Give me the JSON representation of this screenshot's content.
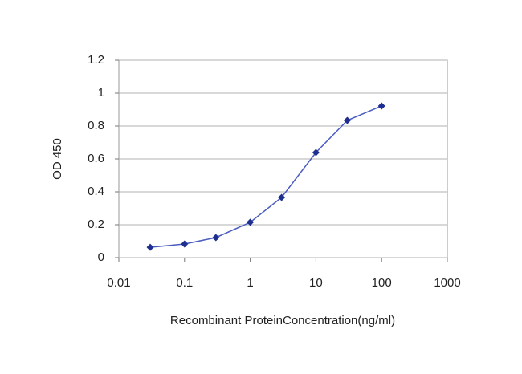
{
  "chart_data": {
    "type": "line",
    "xlabel": "Recombinant ProteinConcentration(ng/ml)",
    "ylabel": "OD 450",
    "x": [
      0.03,
      0.1,
      0.3,
      1,
      3,
      10,
      30,
      100
    ],
    "values": [
      0.063,
      0.083,
      0.122,
      0.215,
      0.366,
      0.639,
      0.834,
      0.922
    ],
    "color": "#4a5cc0",
    "marker_color": "#1f2f8f",
    "x_log": true,
    "xlim": [
      0.01,
      1000
    ],
    "xticks": [
      0.01,
      0.1,
      1,
      10,
      100,
      1000
    ],
    "ylim": [
      0,
      1.2
    ],
    "yticks": [
      0,
      0.2,
      0.4,
      0.6,
      0.8,
      1,
      1.2
    ],
    "grid": true
  }
}
